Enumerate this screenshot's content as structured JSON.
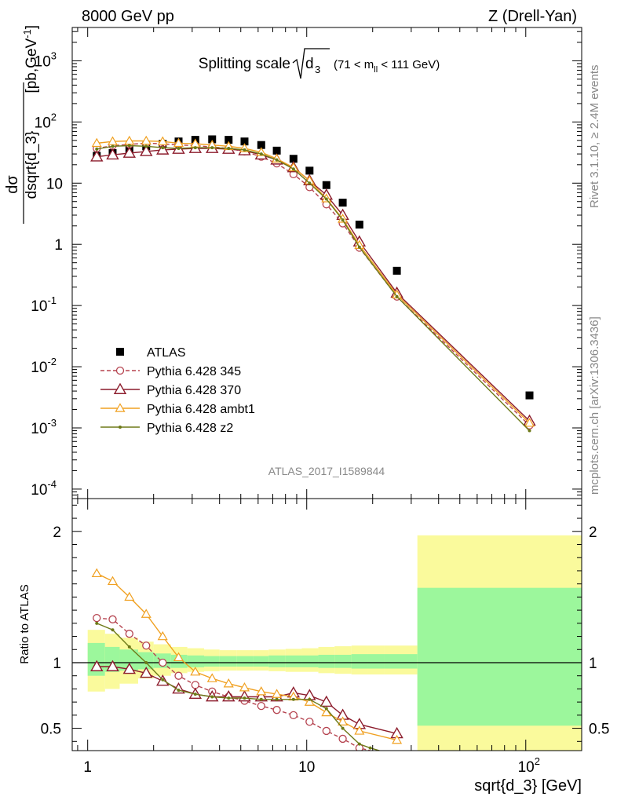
{
  "header": {
    "left": "8000 GeV pp",
    "right": "Z (Drell-Yan)"
  },
  "side_labels": {
    "rivet": "Rivet 3.1.10, ≥ 2.4M events",
    "mcplots": "mcplots.cern.ch [arXiv:1306.3436]"
  },
  "watermark": "ATLAS_2017_I1589844",
  "chart_data": [
    {
      "type": "scatter",
      "panel": "main",
      "title": "Splitting scale",
      "title_sqrt": "d",
      "title_sub": "3",
      "title_range": "(71 < m",
      "title_range_sub": "ll",
      "title_range_end": " < 111 GeV)",
      "ylabel_num": "dσ",
      "ylabel_den": "dsqrt{d_3}",
      "ylabel_unit": "[pb,GeV",
      "ylabel_unit_sup": "-1",
      "ylabel_unit_end": "]",
      "xscale": "log",
      "yscale": "log",
      "xlim": [
        0.85,
        180
      ],
      "ylim": [
        7e-05,
        3500
      ],
      "yticks": [
        {
          "v": 0.0001,
          "m": "10",
          "e": "-4"
        },
        {
          "v": 0.001,
          "m": "10",
          "e": "-3"
        },
        {
          "v": 0.01,
          "m": "10",
          "e": "-2"
        },
        {
          "v": 0.1,
          "m": "10",
          "e": "-1"
        },
        {
          "v": 1,
          "m": "1",
          "e": ""
        },
        {
          "v": 10,
          "m": "10",
          "e": ""
        },
        {
          "v": 100,
          "m": "10",
          "e": "2"
        },
        {
          "v": 1000,
          "m": "10",
          "e": "3"
        }
      ],
      "legend_position": "bottom-left",
      "series": [
        {
          "name": "ATLAS",
          "color": "#000000",
          "style": "data",
          "x": [
            1.1,
            1.3,
            1.55,
            1.85,
            2.2,
            2.6,
            3.1,
            3.7,
            4.4,
            5.2,
            6.2,
            7.3,
            8.7,
            10.3,
            12.3,
            14.6,
            17.4,
            25.8,
            104
          ],
          "y": [
            28,
            31,
            35,
            40,
            44,
            48,
            51,
            52,
            51,
            48,
            42,
            34,
            25,
            16,
            9.3,
            4.8,
            2.1,
            0.37,
            0.0034
          ]
        },
        {
          "name": "Pythia 6.428 345",
          "color": "#b5434f",
          "style": "dashed-circle",
          "x": [
            1.1,
            1.3,
            1.55,
            1.85,
            2.2,
            2.6,
            3.1,
            3.7,
            4.4,
            5.2,
            6.2,
            7.3,
            8.7,
            10.3,
            12.3,
            14.6,
            17.4,
            25.8,
            104
          ],
          "y": [
            37,
            41,
            43,
            45,
            44,
            42,
            41,
            39,
            37,
            33,
            27,
            21,
            14,
            8.6,
            4.5,
            2.2,
            0.88,
            0.14,
            0.0011
          ]
        },
        {
          "name": "Pythia 6.428 370",
          "color": "#8c1c2c",
          "style": "solid-triangle-large",
          "x": [
            1.1,
            1.3,
            1.55,
            1.85,
            2.2,
            2.6,
            3.1,
            3.7,
            4.4,
            5.2,
            6.2,
            7.3,
            8.7,
            10.3,
            12.3,
            14.6,
            17.4,
            25.8,
            104
          ],
          "y": [
            27,
            29,
            31,
            33,
            35,
            36,
            37,
            37,
            36,
            34,
            29,
            24,
            18,
            11,
            6.4,
            3,
            1.1,
            0.16,
            0.0013
          ]
        },
        {
          "name": "Pythia 6.428 ambt1",
          "color": "#f0a020",
          "style": "solid-triangle",
          "x": [
            1.1,
            1.3,
            1.55,
            1.85,
            2.2,
            2.6,
            3.1,
            3.7,
            4.4,
            5.2,
            6.2,
            7.3,
            8.7,
            10.3,
            12.3,
            14.6,
            17.4,
            25.8,
            104
          ],
          "y": [
            45,
            48,
            49,
            49,
            48,
            45,
            44,
            42,
            40,
            37,
            32,
            25,
            18,
            11,
            5.6,
            2.6,
            0.97,
            0.15,
            0.0012
          ]
        },
        {
          "name": "Pythia 6.428 z2",
          "color": "#6e7a18",
          "style": "solid-dot",
          "x": [
            1.1,
            1.3,
            1.55,
            1.85,
            2.2,
            2.6,
            3.1,
            3.7,
            4.4,
            5.2,
            6.2,
            7.3,
            8.7,
            10.3,
            12.3,
            14.6,
            17.4,
            25.8,
            104
          ],
          "y": [
            36,
            40,
            41,
            40,
            38,
            37,
            38,
            38,
            37,
            35,
            30,
            24,
            17,
            10,
            5.5,
            2.5,
            0.9,
            0.14,
            0.0009
          ]
        }
      ]
    },
    {
      "type": "line",
      "panel": "ratio",
      "ylabel": "Ratio to ATLAS",
      "xlabel": "sqrt{d_3} [GeV]",
      "xscale": "log",
      "xlim": [
        0.85,
        180
      ],
      "ylim": [
        0.33,
        2.25
      ],
      "yticks": [
        0.5,
        1,
        2
      ],
      "ytick_labels": [
        "0.5",
        "1",
        "2"
      ],
      "xticks": [
        1,
        10,
        100
      ],
      "xtick_labels": [
        {
          "m": "1",
          "e": ""
        },
        {
          "m": "10",
          "e": ""
        },
        {
          "m": "10",
          "e": "2"
        }
      ],
      "bands": {
        "edges": [
          1,
          1.2,
          1.4,
          1.7,
          2.0,
          2.4,
          2.85,
          3.4,
          4.0,
          4.8,
          5.7,
          6.7,
          8.0,
          9.5,
          11.3,
          13.4,
          16.0,
          19.0,
          22.6,
          32,
          180
        ],
        "stat_sys_inner": [
          [
            0.9,
            1.15
          ],
          [
            0.93,
            1.12
          ],
          [
            0.94,
            1.1
          ],
          [
            0.95,
            1.08
          ],
          [
            0.96,
            1.07
          ],
          [
            0.96,
            1.06
          ],
          [
            0.965,
            1.055
          ],
          [
            0.97,
            1.05
          ],
          [
            0.97,
            1.05
          ],
          [
            0.97,
            1.05
          ],
          [
            0.97,
            1.05
          ],
          [
            0.965,
            1.055
          ],
          [
            0.965,
            1.055
          ],
          [
            0.965,
            1.055
          ],
          [
            0.96,
            1.06
          ],
          [
            0.96,
            1.06
          ],
          [
            0.955,
            1.065
          ],
          [
            0.955,
            1.065
          ],
          [
            0.955,
            1.065
          ],
          [
            0.52,
            1.57
          ]
        ],
        "stat_sys_outer": [
          [
            0.78,
            1.25
          ],
          [
            0.8,
            1.22
          ],
          [
            0.84,
            1.19
          ],
          [
            0.88,
            1.16
          ],
          [
            0.9,
            1.14
          ],
          [
            0.92,
            1.12
          ],
          [
            0.93,
            1.11
          ],
          [
            0.935,
            1.1
          ],
          [
            0.94,
            1.095
          ],
          [
            0.94,
            1.095
          ],
          [
            0.94,
            1.095
          ],
          [
            0.935,
            1.1
          ],
          [
            0.93,
            1.105
          ],
          [
            0.93,
            1.11
          ],
          [
            0.92,
            1.12
          ],
          [
            0.915,
            1.125
          ],
          [
            0.91,
            1.13
          ],
          [
            0.91,
            1.13
          ],
          [
            0.91,
            1.13
          ],
          [
            0.33,
            1.97
          ]
        ],
        "inner_color": "#9cf79c",
        "outer_color": "#fafa9c"
      },
      "series": [
        {
          "name": "Pythia 6.428 345",
          "color": "#b5434f",
          "style": "dashed-circle",
          "x": [
            1.1,
            1.3,
            1.55,
            1.85,
            2.2,
            2.6,
            3.1,
            3.7,
            4.4,
            5.2,
            6.2,
            7.3,
            8.7,
            10.3,
            12.3,
            14.6,
            17.4,
            19.5
          ],
          "y": [
            1.34,
            1.33,
            1.22,
            1.13,
            1.0,
            0.9,
            0.83,
            0.78,
            0.74,
            0.71,
            0.67,
            0.64,
            0.6,
            0.55,
            0.48,
            0.42,
            0.35,
            0.33
          ]
        },
        {
          "name": "Pythia 6.428 370",
          "color": "#8c1c2c",
          "style": "solid-triangle-large",
          "x": [
            1.1,
            1.3,
            1.55,
            1.85,
            2.2,
            2.6,
            3.1,
            3.7,
            4.4,
            5.2,
            6.2,
            7.3,
            8.7,
            10.3,
            12.3,
            14.6,
            17.4,
            25.8
          ],
          "y": [
            0.97,
            0.97,
            0.95,
            0.92,
            0.86,
            0.8,
            0.76,
            0.74,
            0.74,
            0.74,
            0.74,
            0.74,
            0.77,
            0.75,
            0.7,
            0.6,
            0.53,
            0.46
          ]
        },
        {
          "name": "Pythia 6.428 ambt1",
          "color": "#f0a020",
          "style": "solid-triangle",
          "x": [
            1.1,
            1.3,
            1.55,
            1.85,
            2.2,
            2.6,
            3.1,
            3.7,
            4.4,
            5.2,
            6.2,
            7.3,
            8.7,
            10.3,
            12.3,
            14.6,
            17.4,
            25.8
          ],
          "y": [
            1.68,
            1.62,
            1.5,
            1.37,
            1.2,
            1.04,
            0.93,
            0.88,
            0.84,
            0.81,
            0.78,
            0.76,
            0.74,
            0.7,
            0.62,
            0.55,
            0.48,
            0.41
          ]
        },
        {
          "name": "Pythia 6.428 z2",
          "color": "#6e7a18",
          "style": "solid-dot",
          "x": [
            1.1,
            1.3,
            1.55,
            1.85,
            2.2,
            2.6,
            3.1,
            3.7,
            4.4,
            5.2,
            6.2,
            7.3,
            8.7,
            10.3,
            12.3,
            14.6,
            17.4,
            19.5,
            21.5
          ],
          "y": [
            1.3,
            1.25,
            1.12,
            1.0,
            0.87,
            0.79,
            0.76,
            0.74,
            0.73,
            0.73,
            0.72,
            0.72,
            0.72,
            0.72,
            0.65,
            0.5,
            0.38,
            0.35,
            0.33
          ]
        }
      ]
    }
  ]
}
